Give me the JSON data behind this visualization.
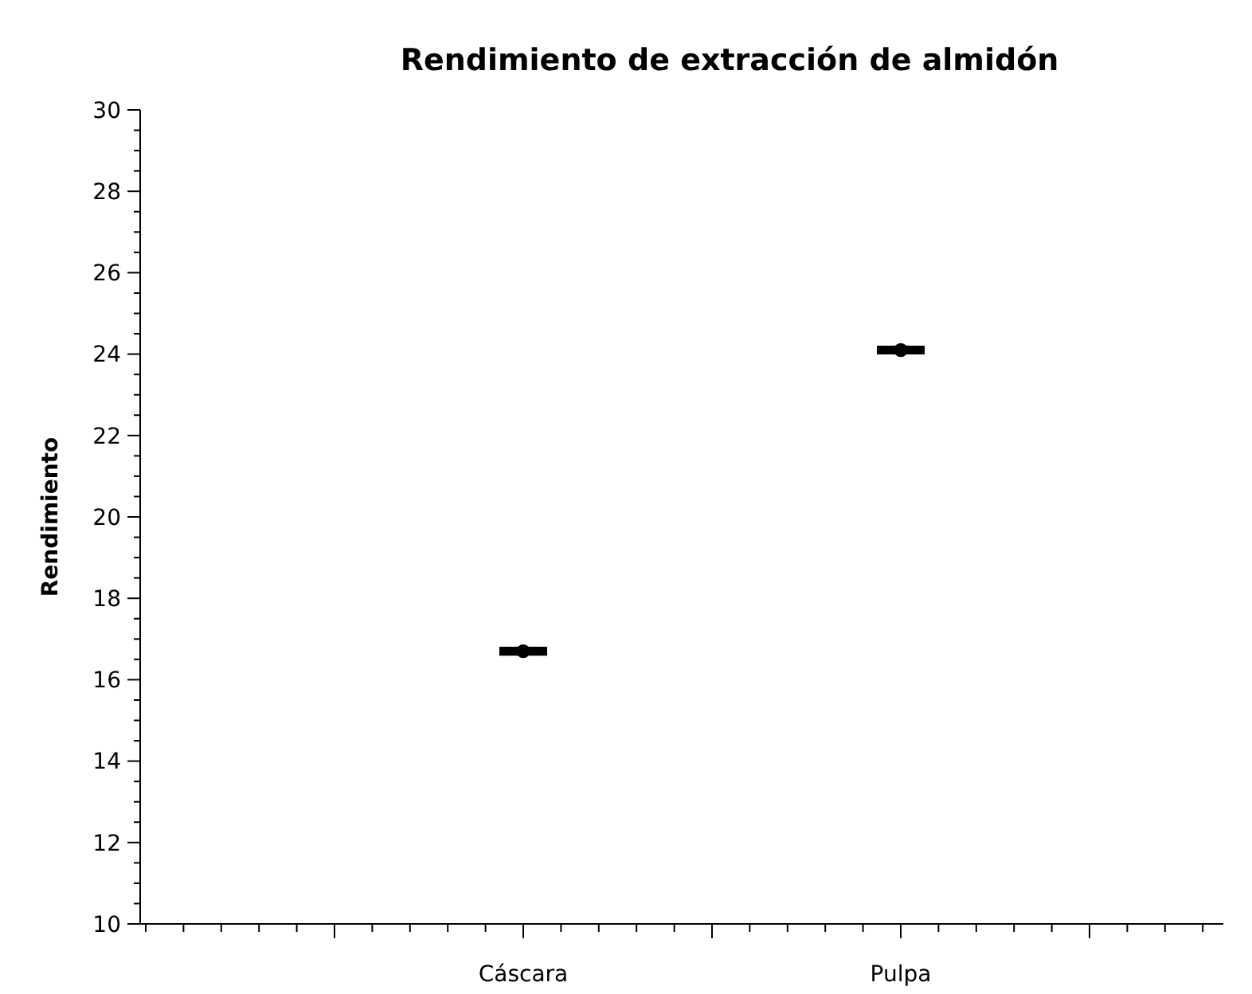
{
  "chart_data": {
    "type": "scatter",
    "title": "Rendimiento de extracción de almidón",
    "ylabel": "Rendimiento",
    "categories": [
      null,
      "Cáscara",
      null,
      "Pulpa",
      null
    ],
    "values": [
      null,
      16.7,
      null,
      24.1,
      null
    ],
    "errors": [
      null,
      0.05,
      null,
      0.05,
      null
    ],
    "color": "#000000",
    "marker": "circle",
    "ylim": [
      10,
      30
    ],
    "yticks": [
      10,
      12,
      14,
      16,
      18,
      20,
      22,
      24,
      26,
      28,
      30
    ],
    "grid": false
  }
}
